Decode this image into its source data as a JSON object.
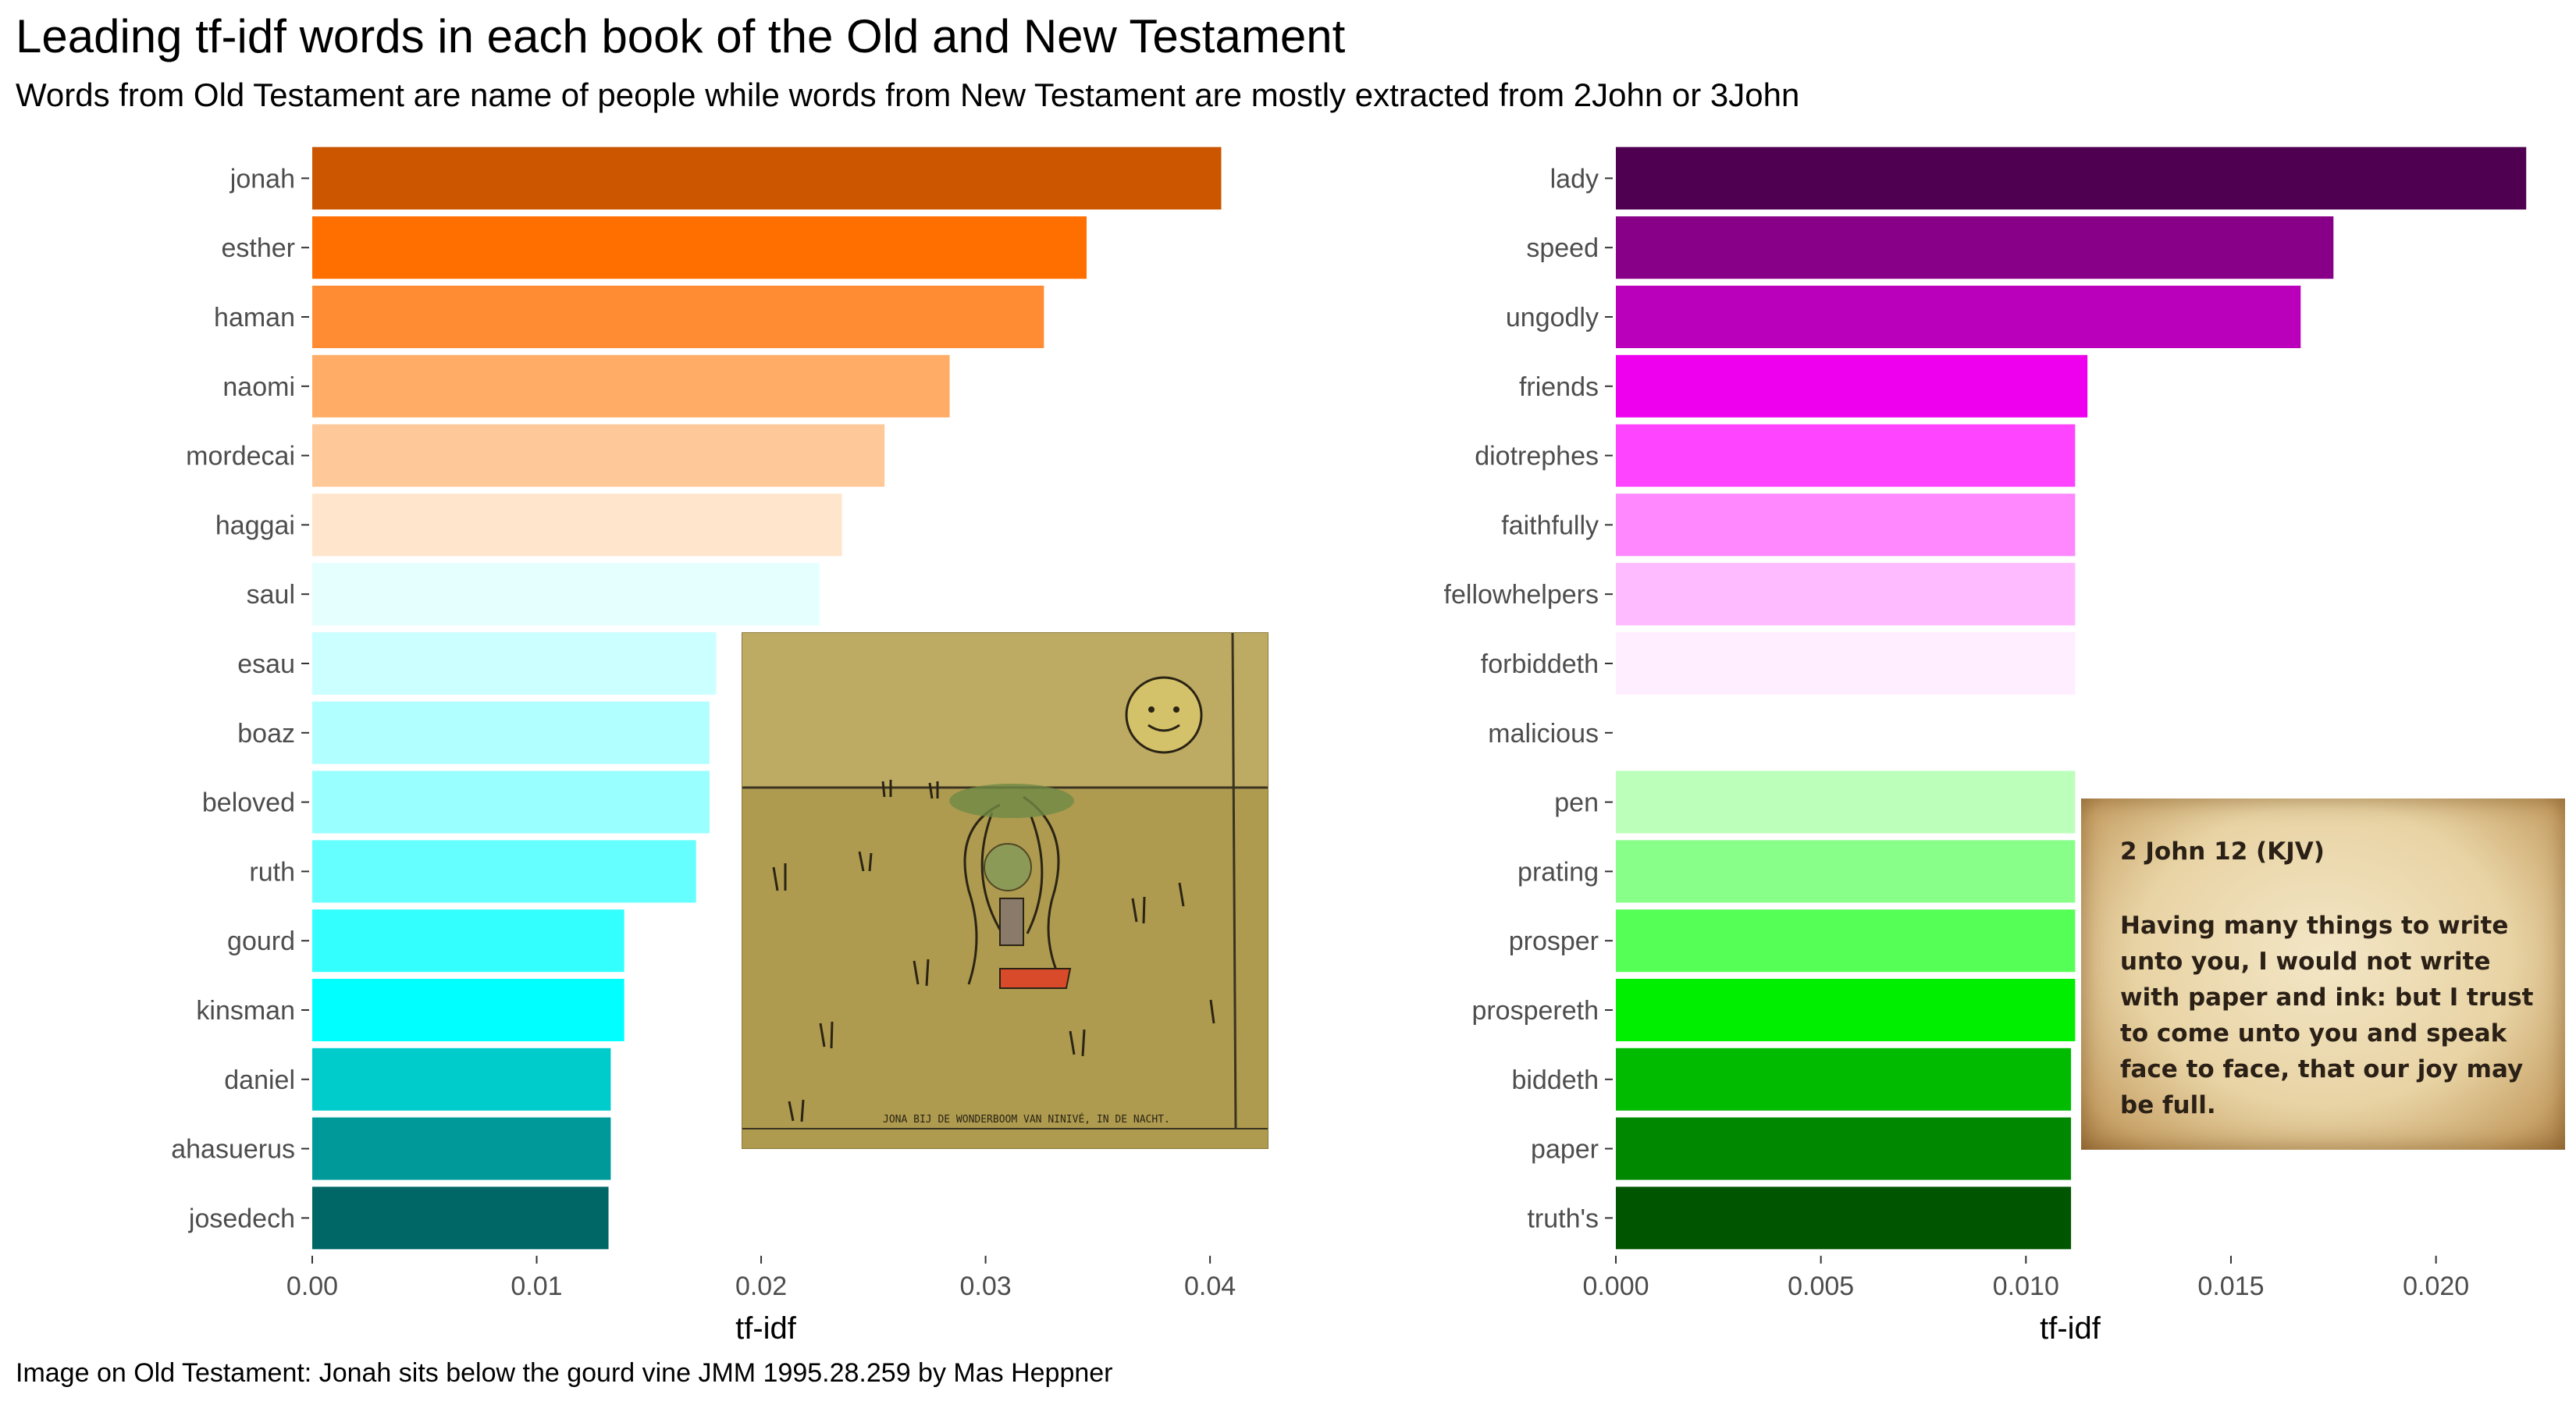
{
  "title": "Leading tf-idf words in each book of the Old and New Testament",
  "subtitle": "Words from Old Testament are name of people while words from New Testament are mostly extracted from 2John or 3John",
  "caption": "Image on Old Testament: Jonah sits below the gourd vine JMM 1995.28.259 by Mas Heppner",
  "painting": {
    "inscription": "JONA BIJ DE WONDERBOOM VAN NINIVÉ, IN DE NACHT.",
    "icon": "jonah-painting-image"
  },
  "verse_card": {
    "title": "2 John 12 (KJV)",
    "text": "Having many things to write unto you, I would not write with paper and ink: but I trust to come unto you and speak face to face, that our joy may be full."
  },
  "chart_data": [
    {
      "type": "bar",
      "orientation": "horizontal",
      "categories": [
        "jonah",
        "esther",
        "haman",
        "naomi",
        "mordecai",
        "haggai",
        "saul",
        "esau",
        "boaz",
        "beloved",
        "ruth",
        "gourd",
        "kinsman",
        "daniel",
        "ahasuerus",
        "josedech"
      ],
      "values": [
        0.0405,
        0.0345,
        0.0326,
        0.0284,
        0.0255,
        0.0236,
        0.0226,
        0.018,
        0.0177,
        0.0177,
        0.0171,
        0.0139,
        0.0139,
        0.0133,
        0.0133,
        0.0132
      ],
      "colors": [
        "#cc5500",
        "#ff6f00",
        "#ff8c32",
        "#ffad66",
        "#ffc899",
        "#ffe5cc",
        "#e5ffff",
        "#ccffff",
        "#b2ffff",
        "#99ffff",
        "#66ffff",
        "#33ffff",
        "#00ffff",
        "#00cccc",
        "#009999",
        "#006666"
      ],
      "xlabel": "tf-idf",
      "ylabel": "",
      "xlim": [
        0,
        0.0425
      ],
      "xticks": [
        0.0,
        0.01,
        0.02,
        0.03,
        0.04
      ],
      "xtick_labels": [
        "0.00",
        "0.01",
        "0.02",
        "0.03",
        "0.04"
      ],
      "grid": false
    },
    {
      "type": "bar",
      "orientation": "horizontal",
      "categories": [
        "lady",
        "speed",
        "ungodly",
        "friends",
        "diotrephes",
        "faithfully",
        "fellowhelpers",
        "forbiddeth",
        "malicious",
        "pen",
        "prating",
        "prosper",
        "prospereth",
        "biddeth",
        "paper",
        "truth's"
      ],
      "values": [
        0.0222,
        0.0175,
        0.0167,
        0.0115,
        0.0112,
        0.0112,
        0.0112,
        0.0112,
        0.0112,
        0.0112,
        0.0112,
        0.0112,
        0.0112,
        0.0111,
        0.0111,
        0.0111
      ],
      "colors": [
        "#4f0050",
        "#880088",
        "#bb00bb",
        "#ee00ee",
        "#ff44ff",
        "#ff88ff",
        "#ffbbff",
        "#ffeeff",
        "#ffffff",
        "#bbffbb",
        "#88ff88",
        "#55ff55",
        "#00ee00",
        "#00bb00",
        "#008800",
        "#005500"
      ],
      "xlabel": "tf-idf",
      "ylabel": "",
      "xlim": [
        0,
        0.0233
      ],
      "xticks": [
        0.0,
        0.005,
        0.01,
        0.015,
        0.02
      ],
      "xtick_labels": [
        "0.000",
        "0.005",
        "0.010",
        "0.015",
        "0.020"
      ],
      "grid": false
    }
  ]
}
